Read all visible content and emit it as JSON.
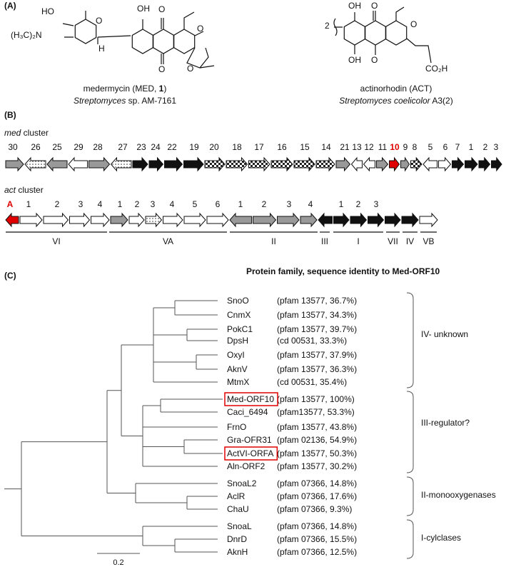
{
  "panel_a": {
    "label": "(A)",
    "compounds": [
      {
        "name_parts": [
          "medermycin (MED, ",
          "1",
          ")"
        ],
        "organism_italic": "Streptomyces",
        "organism_rest": " sp. AM-7161",
        "atoms": [
          "HO",
          "(H₃C)₂N",
          "O",
          "H",
          "OH",
          "O",
          "O",
          "O",
          "O"
        ]
      },
      {
        "name_parts": [
          "actinorhodin (ACT)"
        ],
        "organism_italic": "Streptomyces coelicolor",
        "organism_rest": " A3(2)",
        "atoms": [
          "2",
          "OH",
          "O",
          "O",
          "OH",
          "O",
          "CO₂H"
        ]
      }
    ]
  },
  "panel_b": {
    "label": "(B)",
    "clusters": [
      {
        "name_italic": "med",
        "name_rest": " cluster",
        "genes": [
          {
            "label": "30",
            "dir": "right",
            "fill": "gray"
          },
          {
            "label": "26",
            "dir": "left",
            "fill": "dots"
          },
          {
            "label": "25",
            "dir": "left",
            "fill": "gray"
          },
          {
            "label": "29",
            "dir": "left",
            "fill": "white"
          },
          {
            "label": "28",
            "dir": "right",
            "fill": "gray"
          },
          {
            "label": "27",
            "dir": "left",
            "fill": "dots"
          },
          {
            "label": "23",
            "dir": "right",
            "fill": "black"
          },
          {
            "label": "24",
            "dir": "right",
            "fill": "black"
          },
          {
            "label": "22",
            "dir": "right",
            "fill": "black"
          },
          {
            "label": "19",
            "dir": "right",
            "fill": "black"
          },
          {
            "label": "20",
            "dir": "right",
            "fill": "checker"
          },
          {
            "label": "18",
            "dir": "right",
            "fill": "checker"
          },
          {
            "label": "17",
            "dir": "right",
            "fill": "checker"
          },
          {
            "label": "16",
            "dir": "right",
            "fill": "checker"
          },
          {
            "label": "15",
            "dir": "right",
            "fill": "checker"
          },
          {
            "label": "14",
            "dir": "right",
            "fill": "checker"
          },
          {
            "label": "21",
            "dir": "right",
            "fill": "gray"
          },
          {
            "label": "13",
            "dir": "left",
            "fill": "white"
          },
          {
            "label": "12",
            "dir": "left",
            "fill": "white"
          },
          {
            "label": "11",
            "dir": "right",
            "fill": "gray"
          },
          {
            "label": "10",
            "dir": "right",
            "fill": "red",
            "highlight": true
          },
          {
            "label": "9",
            "dir": "right",
            "fill": "gray"
          },
          {
            "label": "8",
            "dir": "right",
            "fill": "checker"
          },
          {
            "label": "5",
            "dir": "left",
            "fill": "white"
          },
          {
            "label": "6",
            "dir": "right",
            "fill": "white"
          },
          {
            "label": "7",
            "dir": "right",
            "fill": "black"
          },
          {
            "label": "1",
            "dir": "right",
            "fill": "black"
          },
          {
            "label": "2",
            "dir": "right",
            "fill": "black"
          },
          {
            "label": "3",
            "dir": "right",
            "fill": "black"
          }
        ]
      },
      {
        "name_italic": "act",
        "name_rest": " cluster",
        "genes": [
          {
            "label": "A",
            "dir": "left",
            "fill": "red",
            "highlight": true
          },
          {
            "label": "1",
            "dir": "right",
            "fill": "white"
          },
          {
            "label": "2",
            "dir": "right",
            "fill": "white"
          },
          {
            "label": "3",
            "dir": "right",
            "fill": "white"
          },
          {
            "label": "4",
            "dir": "right",
            "fill": "white"
          },
          {
            "label": "1",
            "dir": "right",
            "fill": "gray"
          },
          {
            "label": "2",
            "dir": "right",
            "fill": "white"
          },
          {
            "label": "3",
            "dir": "right",
            "fill": "dots"
          },
          {
            "label": "4",
            "dir": "right",
            "fill": "white"
          },
          {
            "label": "5",
            "dir": "right",
            "fill": "white"
          },
          {
            "label": "6",
            "dir": "right",
            "fill": "white"
          },
          {
            "label": "1",
            "dir": "left",
            "fill": "gray"
          },
          {
            "label": "2",
            "dir": "right",
            "fill": "gray"
          },
          {
            "label": "3",
            "dir": "right",
            "fill": "gray"
          },
          {
            "label": "4",
            "dir": "right",
            "fill": "gray"
          },
          {
            "label": null,
            "dir": "left",
            "fill": "black"
          },
          {
            "label": "1",
            "dir": "right",
            "fill": "black"
          },
          {
            "label": "2",
            "dir": "right",
            "fill": "black"
          },
          {
            "label": "3",
            "dir": "right",
            "fill": "black"
          },
          {
            "label": null,
            "dir": "right",
            "fill": "black"
          },
          {
            "label": null,
            "dir": "right",
            "fill": "black"
          },
          {
            "label": null,
            "dir": "right",
            "fill": "white"
          }
        ],
        "groups": [
          "VI",
          "VA",
          "II",
          "III",
          "I",
          "VII",
          "IV",
          "VB"
        ]
      }
    ]
  },
  "panel_c": {
    "label": "(C)",
    "title": "Protein family, sequence identity to Med-ORF10",
    "leaves": [
      {
        "name": "SnoO",
        "family": "(pfam 13577, 36.7%)"
      },
      {
        "name": "CnmX",
        "family": "(pfam 13577, 34.3%)"
      },
      {
        "name": "PokC1",
        "family": "(pfam 13577, 39.7%)"
      },
      {
        "name": "DpsH",
        "family": "(cd 00531, 33.3%)"
      },
      {
        "name": "OxyI",
        "family": "(pfam 13577, 37.9%)"
      },
      {
        "name": "AknV",
        "family": "(pfam 13577, 36.3%)"
      },
      {
        "name": "MtmX",
        "family": "(cd 00531, 35.4%)"
      },
      {
        "name": "Med-ORF10",
        "family": "(pfam 13577, 100%)",
        "boxed": true
      },
      {
        "name": "Caci_6494",
        "family": "(pfam13577, 53.3%)"
      },
      {
        "name": "FrnO",
        "family": "(pfam 13577, 43.8%)"
      },
      {
        "name": "Gra-OFR31",
        "family": "(pfam 02136, 54.9%)"
      },
      {
        "name": "ActVI-ORFA",
        "family": "(pfam 13577, 50.3%)",
        "boxed": true
      },
      {
        "name": "Aln-ORF2",
        "family": "(pfam 13577, 30.2%)"
      },
      {
        "name": "SnoaL2",
        "family": "(pfam 07366, 14.8%)"
      },
      {
        "name": "AclR",
        "family": "(pfam 07366, 17.6%)"
      },
      {
        "name": "ChaU",
        "family": "(pfam 07366, 9.3%)"
      },
      {
        "name": "SnoaL",
        "family": "(pfam 07366, 14.8%)"
      },
      {
        "name": "DnrD",
        "family": "(pfam 07366, 15.5%)"
      },
      {
        "name": "AknH",
        "family": "(pfam 07366, 12.5%)"
      }
    ],
    "clades": [
      "IV- unknown",
      "III-regulator?",
      "II-monooxygenases",
      "I-cylclases"
    ],
    "scale_bar": "0.2"
  }
}
